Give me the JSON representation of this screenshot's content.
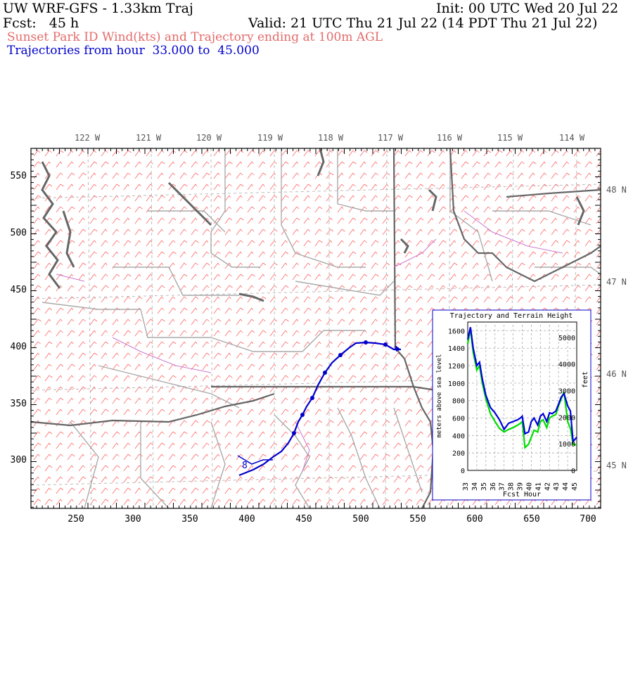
{
  "header": {
    "model_title": "UW WRF-GFS - 1.33km Traj",
    "init": "Init: 00 UTC Wed 20 Jul 22",
    "fcst": "Fcst:   45 h",
    "valid": "Valid: 21 UTC Thu 21 Jul 22 (14 PDT Thu 21 Jul 22)",
    "subtitle": "Sunset Park ID Wind(kts) and Trajectory ending at 100m AGL",
    "traj_range": "Trajectories from hour  33.000 to  45.000"
  },
  "map": {
    "lon_labels": [
      "122 W",
      "121 W",
      "120 W",
      "119 W",
      "118 W",
      "117 W",
      "116 W",
      "115 W",
      "114 W"
    ],
    "lat_labels": [
      "48 N",
      "47 N",
      "46 N",
      "45 N"
    ],
    "x_ticks": [
      "250",
      "300",
      "350",
      "400",
      "450",
      "500",
      "550",
      "600",
      "650",
      "700"
    ],
    "y_ticks": [
      "550",
      "500",
      "450",
      "400",
      "350",
      "300"
    ],
    "trajectory_label": "8",
    "colors": {
      "trajectory": "#0000cc",
      "wind_barbs": "#ff6666",
      "borders": "#999999",
      "coast": "#666666",
      "rivers": "#cc66cc"
    }
  },
  "inset": {
    "title": "Trajectory and Terrain Height",
    "ylabel_left": "meters above sea level",
    "ylabel_right": "feet",
    "xlabel": "Fcst Hour",
    "left_ticks": [
      "1600",
      "1400",
      "1200",
      "1000",
      "800",
      "600",
      "400",
      "200",
      "0"
    ],
    "right_ticks": [
      "5000",
      "4000",
      "3000",
      "2000",
      "1000",
      "0"
    ],
    "x_ticks": [
      "33",
      "34",
      "35",
      "36",
      "37",
      "38",
      "39",
      "40",
      "41",
      "42",
      "43",
      "44",
      "45"
    ]
  },
  "chart_data": {
    "type": "line",
    "title": "Trajectory and Terrain Height",
    "xlabel": "Fcst Hour",
    "ylabel": "meters above sea level",
    "y2label": "feet",
    "xlim": [
      33,
      45
    ],
    "ylim": [
      0,
      1700
    ],
    "x": [
      33,
      33.3,
      33.6,
      34,
      34.3,
      34.6,
      35,
      35.5,
      36,
      36.5,
      37,
      37.5,
      38,
      38.5,
      38.8,
      39,
      39.3,
      39.7,
      40,
      40.3,
      40.7,
      41,
      41.3,
      41.7,
      42,
      42.3,
      42.7,
      43,
      43.3,
      43.6,
      44,
      44.3,
      44.6,
      45
    ],
    "series": [
      {
        "color": "#00dd00",
        "values": [
          1450,
          1620,
          1350,
          1150,
          1200,
          1000,
          820,
          650,
          560,
          480,
          440,
          470,
          490,
          520,
          540,
          560,
          260,
          300,
          380,
          460,
          440,
          560,
          580,
          490,
          600,
          620,
          640,
          740,
          820,
          900,
          560,
          480,
          300,
          290
        ]
      },
      {
        "color": "#0000dd",
        "values": [
          1500,
          1640,
          1400,
          1200,
          1240,
          1050,
          860,
          720,
          660,
          580,
          470,
          540,
          560,
          580,
          600,
          620,
          420,
          440,
          560,
          600,
          520,
          620,
          650,
          560,
          660,
          650,
          680,
          760,
          840,
          880,
          740,
          680,
          330,
          380
        ]
      }
    ]
  }
}
